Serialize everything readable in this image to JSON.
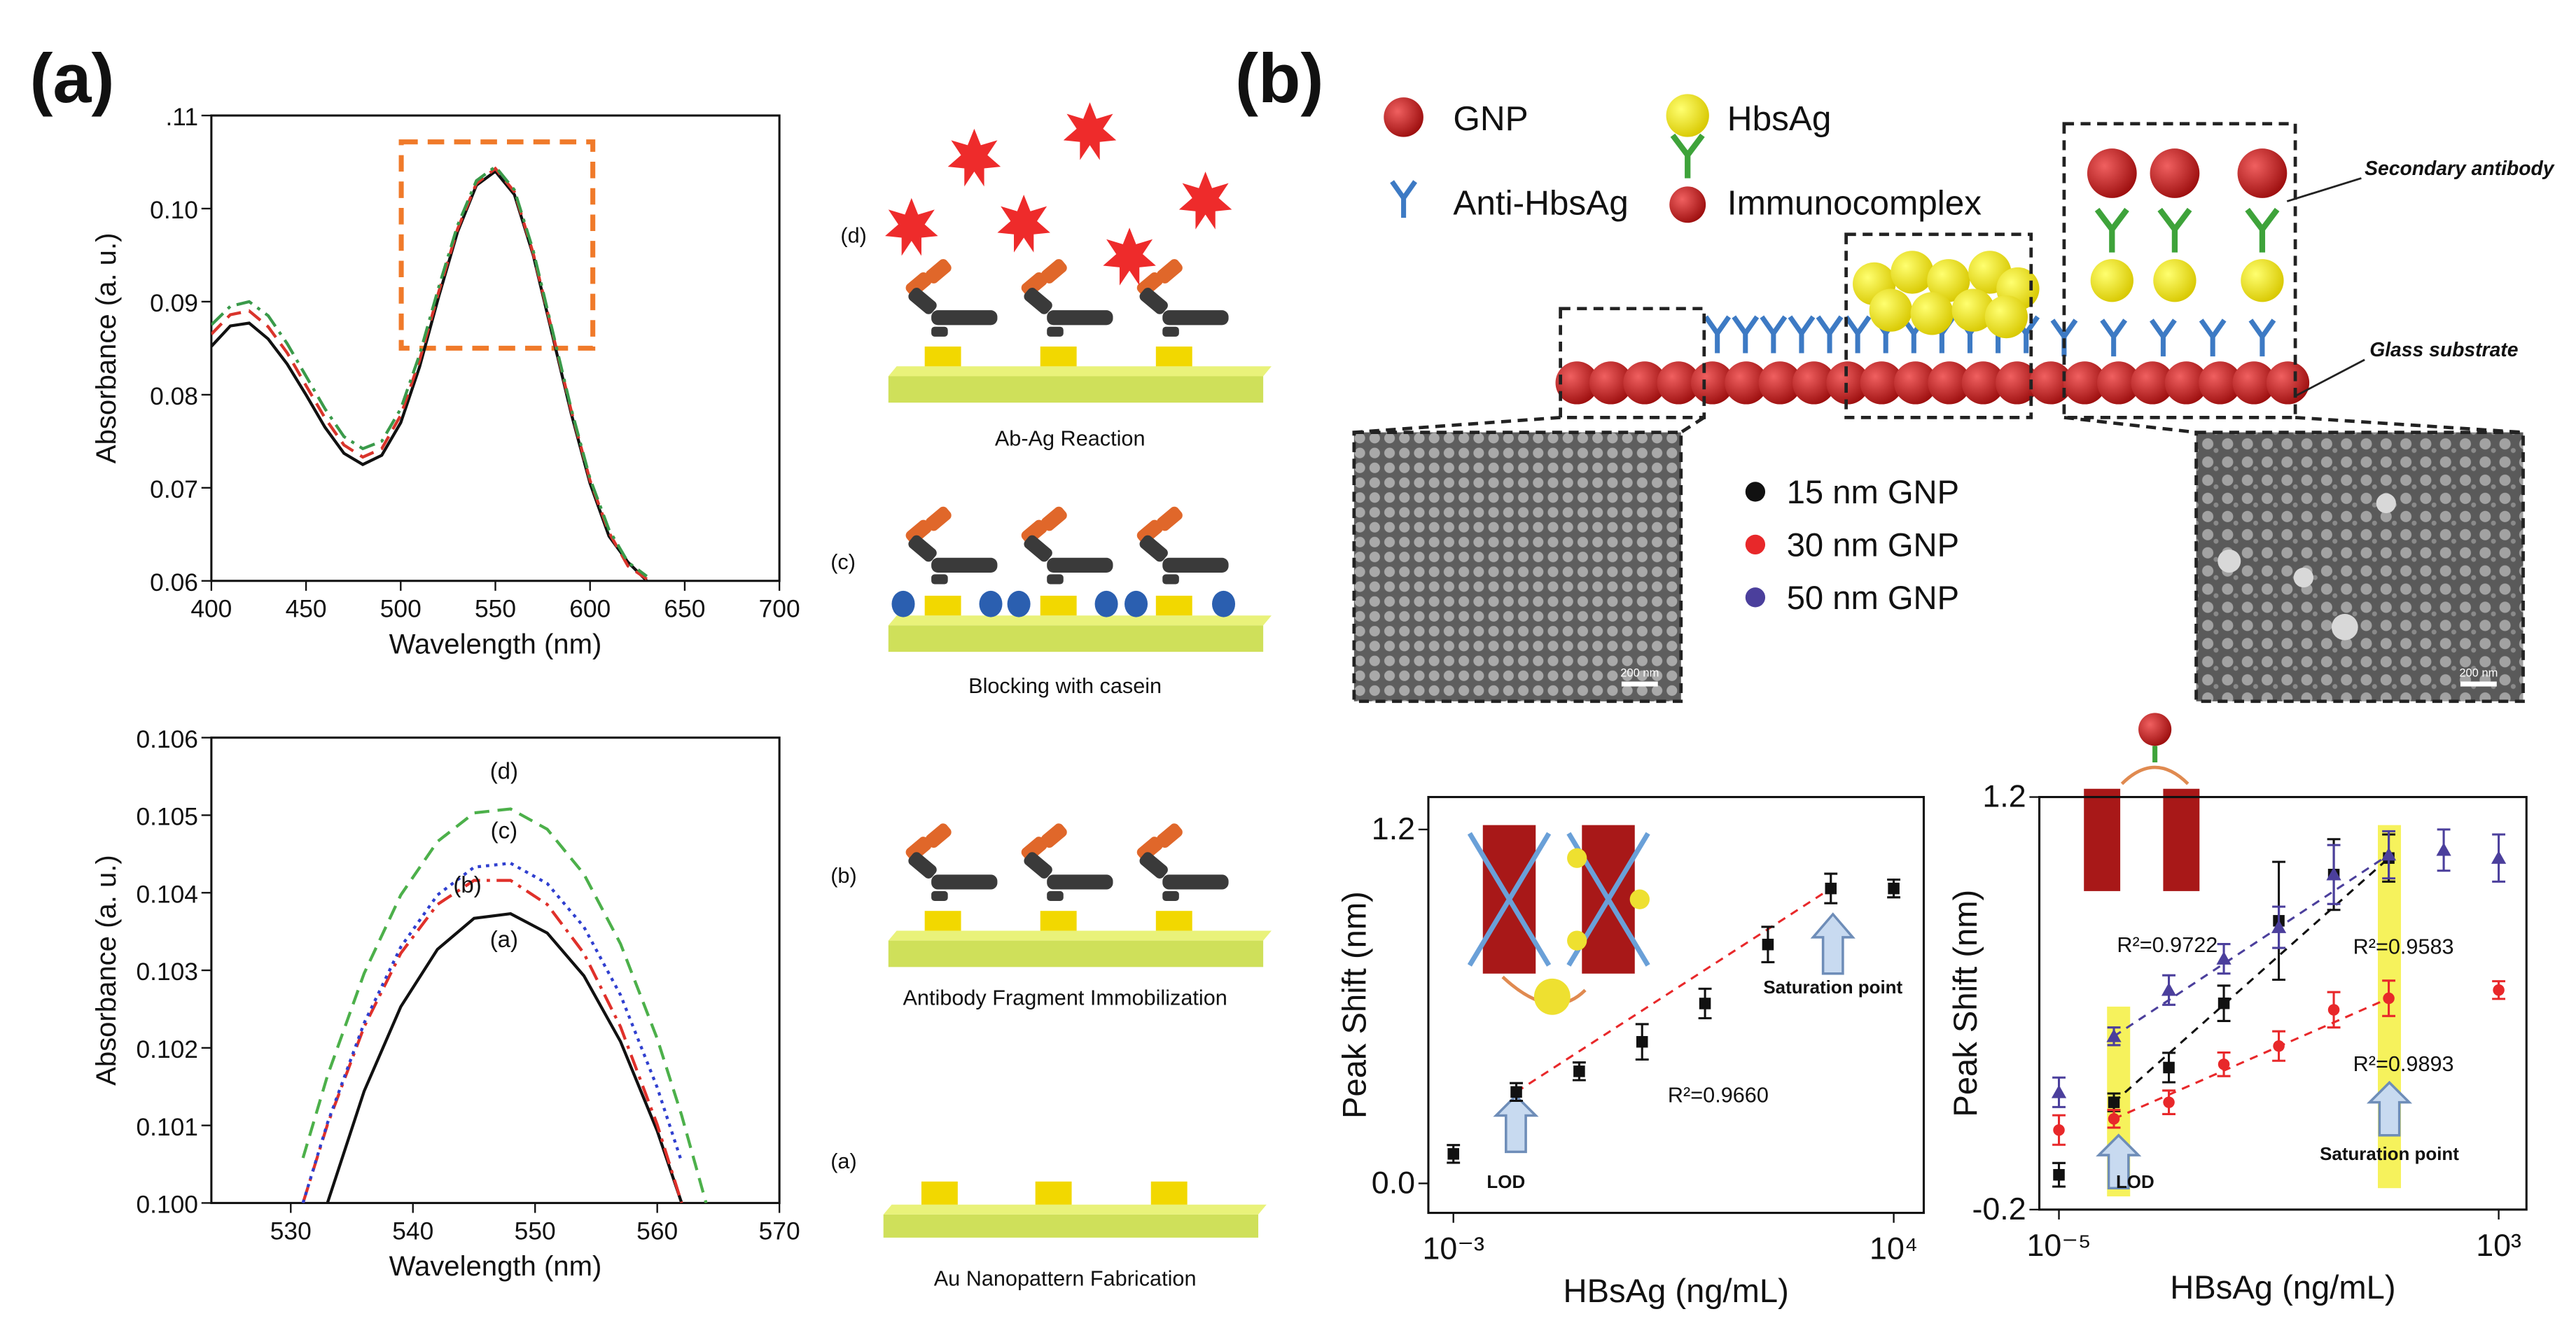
{
  "panel_labels": [
    "(a)",
    "(b)"
  ],
  "schematic": {
    "steps": [
      {
        "letter": "(d)",
        "caption": "Ab-Ag Reaction"
      },
      {
        "letter": "(c)",
        "caption": "Blocking with casein"
      },
      {
        "letter": "(b)",
        "caption": "Antibody Fragment Immobilization"
      },
      {
        "letter": "(a)",
        "caption": "Au Nanopattern Fabrication"
      }
    ]
  },
  "assay": {
    "legend": [
      "GNP",
      "HbsAg",
      "Anti-HbsAg",
      "Immunocomplex"
    ],
    "labels": [
      "Secondary antibody",
      "Glass substrate"
    ],
    "scale_bars": [
      "200 nm",
      "200 nm"
    ]
  },
  "chart_data": [
    {
      "type": "line",
      "xlabel": "Wavelength (nm)",
      "ylabel": "Absorbance (a. u.)",
      "xlim": [
        400,
        700
      ],
      "ylim": [
        0.06,
        0.11
      ],
      "xticks": [
        400,
        450,
        500,
        550,
        600,
        650,
        700
      ],
      "yticks": [
        0.06,
        0.07,
        0.08,
        0.09,
        {
          "value": 0.1,
          "label": "0.10"
        },
        {
          "value": 0.11,
          "label": ".11"
        }
      ],
      "x": [
        400,
        410,
        420,
        430,
        440,
        450,
        460,
        470,
        480,
        490,
        500,
        510,
        520,
        530,
        540,
        550,
        560,
        570,
        580,
        590,
        600,
        610,
        620,
        630
      ],
      "series": [
        {
          "color": "#111111",
          "style": "solid",
          "values": [
            0.0852,
            0.0874,
            0.0877,
            0.086,
            0.0833,
            0.08,
            0.0765,
            0.0737,
            0.0725,
            0.0735,
            0.077,
            0.083,
            0.0905,
            0.0975,
            0.1025,
            0.104,
            0.1015,
            0.095,
            0.0865,
            0.078,
            0.0705,
            0.0648,
            0.062,
            0.06
          ]
        },
        {
          "color": "#d9342b",
          "style": "dashed",
          "values": [
            0.0865,
            0.0886,
            0.089,
            0.0873,
            0.0845,
            0.081,
            0.0775,
            0.0746,
            0.0733,
            0.0742,
            0.0778,
            0.0837,
            0.091,
            0.0978,
            0.1027,
            0.1043,
            0.1018,
            0.0952,
            0.0868,
            0.0783,
            0.0708,
            0.0652,
            0.0616,
            0.0602
          ]
        },
        {
          "color": "#3a9a4a",
          "style": "dashdot",
          "values": [
            0.0875,
            0.0895,
            0.09,
            0.0885,
            0.0855,
            0.082,
            0.0785,
            0.0755,
            0.0742,
            0.075,
            0.0785,
            0.0843,
            0.0915,
            0.0982,
            0.103,
            0.1045,
            0.102,
            0.0955,
            0.087,
            0.0785,
            0.071,
            0.0655,
            0.062,
            0.0605
          ]
        }
      ]
    },
    {
      "type": "line",
      "xlabel": "Wavelength (nm)",
      "ylabel": "Absorbance (a. u.)",
      "xlim": [
        523.5,
        570
      ],
      "ylim": [
        0.1,
        0.106
      ],
      "xticks": [
        530,
        540,
        550,
        560,
        570
      ],
      "yticks": [
        {
          "value": 0.1,
          "label": "0.100"
        },
        {
          "value": 0.101,
          "label": "0.101"
        },
        {
          "value": 0.102,
          "label": "0.102"
        },
        {
          "value": 0.103,
          "label": "0.103"
        },
        {
          "value": 0.104,
          "label": "0.104"
        },
        {
          "value": 0.105,
          "label": "0.105"
        },
        {
          "value": 0.106,
          "label": "0.106"
        }
      ],
      "x": [
        531,
        533,
        536,
        539,
        542,
        545,
        548,
        551,
        554,
        557,
        560,
        562,
        564
      ],
      "series": [
        {
          "name": "(a)",
          "color": "#111111",
          "style": "solid",
          "values": [
            null,
            0.1,
            0.10144,
            0.10253,
            0.10327,
            0.10367,
            0.10373,
            0.10348,
            0.10293,
            0.10208,
            0.10093,
            0.1,
            null
          ]
        },
        {
          "name": "(b)",
          "color": "#e0302a",
          "style": "dashdot",
          "values": [
            0.1,
            0.10101,
            0.10227,
            0.10322,
            0.10385,
            0.10416,
            0.10416,
            0.10385,
            0.10322,
            0.10227,
            0.10101,
            0.1,
            null
          ]
        },
        {
          "name": "(c)",
          "color": "#2f3fcf",
          "style": "dotted",
          "values": [
            0.1,
            0.10103,
            0.10232,
            0.1033,
            0.10397,
            0.10433,
            0.10438,
            0.10412,
            0.10356,
            0.10268,
            0.10149,
            0.10053,
            null
          ]
        },
        {
          "name": "(d)",
          "color": "#4cb04a",
          "style": "dashed",
          "values": [
            0.10058,
            0.10164,
            0.10296,
            0.10397,
            0.10466,
            0.10503,
            0.10508,
            0.10482,
            0.10424,
            0.10334,
            0.10212,
            0.10113,
            0.1
          ]
        }
      ]
    },
    {
      "type": "scatter",
      "xlabel": "HBsAg (ng/mL)",
      "ylabel": "Peak Shift (nm)",
      "xlog": true,
      "xlim": [
        0.0004,
        30000
      ],
      "ylim": [
        -0.1,
        1.31
      ],
      "xticks": [
        {
          "value": 0.001,
          "label": "10⁻³"
        },
        {
          "value": 10000,
          "label": "10⁴"
        }
      ],
      "yticks": [
        {
          "value": 0,
          "label": "0.0"
        },
        1.2
      ],
      "x": [
        0.001,
        0.01,
        0.1,
        1,
        10,
        100,
        1000,
        10000
      ],
      "series": [
        {
          "color": "#111111",
          "marker": "square",
          "values": [
            0.1,
            0.31,
            0.38,
            0.48,
            0.61,
            0.81,
            1.0,
            1.0
          ],
          "errors": [
            0.03,
            0.03,
            0.03,
            0.06,
            0.05,
            0.06,
            0.05,
            0.03
          ]
        }
      ],
      "annotations": [
        {
          "text": "R²=0.9660",
          "color": "#111111"
        },
        {
          "text": "LOD",
          "color": "#111111"
        },
        {
          "text": "Saturation point",
          "color": "#111111"
        }
      ]
    },
    {
      "type": "scatter",
      "xlabel": "HBsAg (ng/mL)",
      "ylabel": "Peak Shift (nm)",
      "xlog": true,
      "xlim": [
        4.4e-06,
        3200
      ],
      "ylim": [
        -0.2,
        1.2
      ],
      "xticks": [
        {
          "value": 1e-05,
          "label": "10⁻⁵"
        },
        {
          "value": 1000,
          "label": "10³"
        }
      ],
      "yticks": [
        -0.2,
        1.2
      ],
      "x": [
        1e-05,
        0.0001,
        0.001,
        0.01,
        0.1,
        1,
        10,
        100,
        1000
      ],
      "series": [
        {
          "name": "15 nm GNP",
          "color": "#111111",
          "marker": "square",
          "values": [
            -0.082,
            0.164,
            0.282,
            0.5,
            0.78,
            0.937,
            0.993,
            null,
            null
          ],
          "errors": [
            0.04,
            0.03,
            0.05,
            0.06,
            0.2,
            0.12,
            0.08,
            null,
            null
          ]
        },
        {
          "name": "30 nm GNP",
          "color": "#e8282a",
          "marker": "circle",
          "values": [
            0.07,
            0.108,
            0.164,
            0.293,
            0.355,
            0.478,
            0.517,
            null,
            0.545
          ],
          "errors": [
            0.05,
            0.03,
            0.04,
            0.04,
            0.05,
            0.06,
            0.06,
            null,
            0.03
          ]
        },
        {
          "name": "50 nm GNP",
          "color": "#4b3f9c",
          "marker": "triangle",
          "values": [
            0.198,
            0.388,
            0.545,
            0.651,
            0.758,
            0.937,
            1.004,
            1.02,
            0.993
          ],
          "errors": [
            0.05,
            0.03,
            0.05,
            0.05,
            0.07,
            0.1,
            0.08,
            0.07,
            0.08
          ]
        }
      ],
      "annotations": [
        {
          "text": "R²=0.9722",
          "color": "#4b3f9c"
        },
        {
          "text": "R²=0.9583",
          "color": "#111111"
        },
        {
          "text": "R²=0.9893",
          "color": "#e8282a"
        },
        {
          "text": "LOD",
          "color": "#111111"
        },
        {
          "text": "Saturation point",
          "color": "#111111"
        }
      ]
    }
  ]
}
